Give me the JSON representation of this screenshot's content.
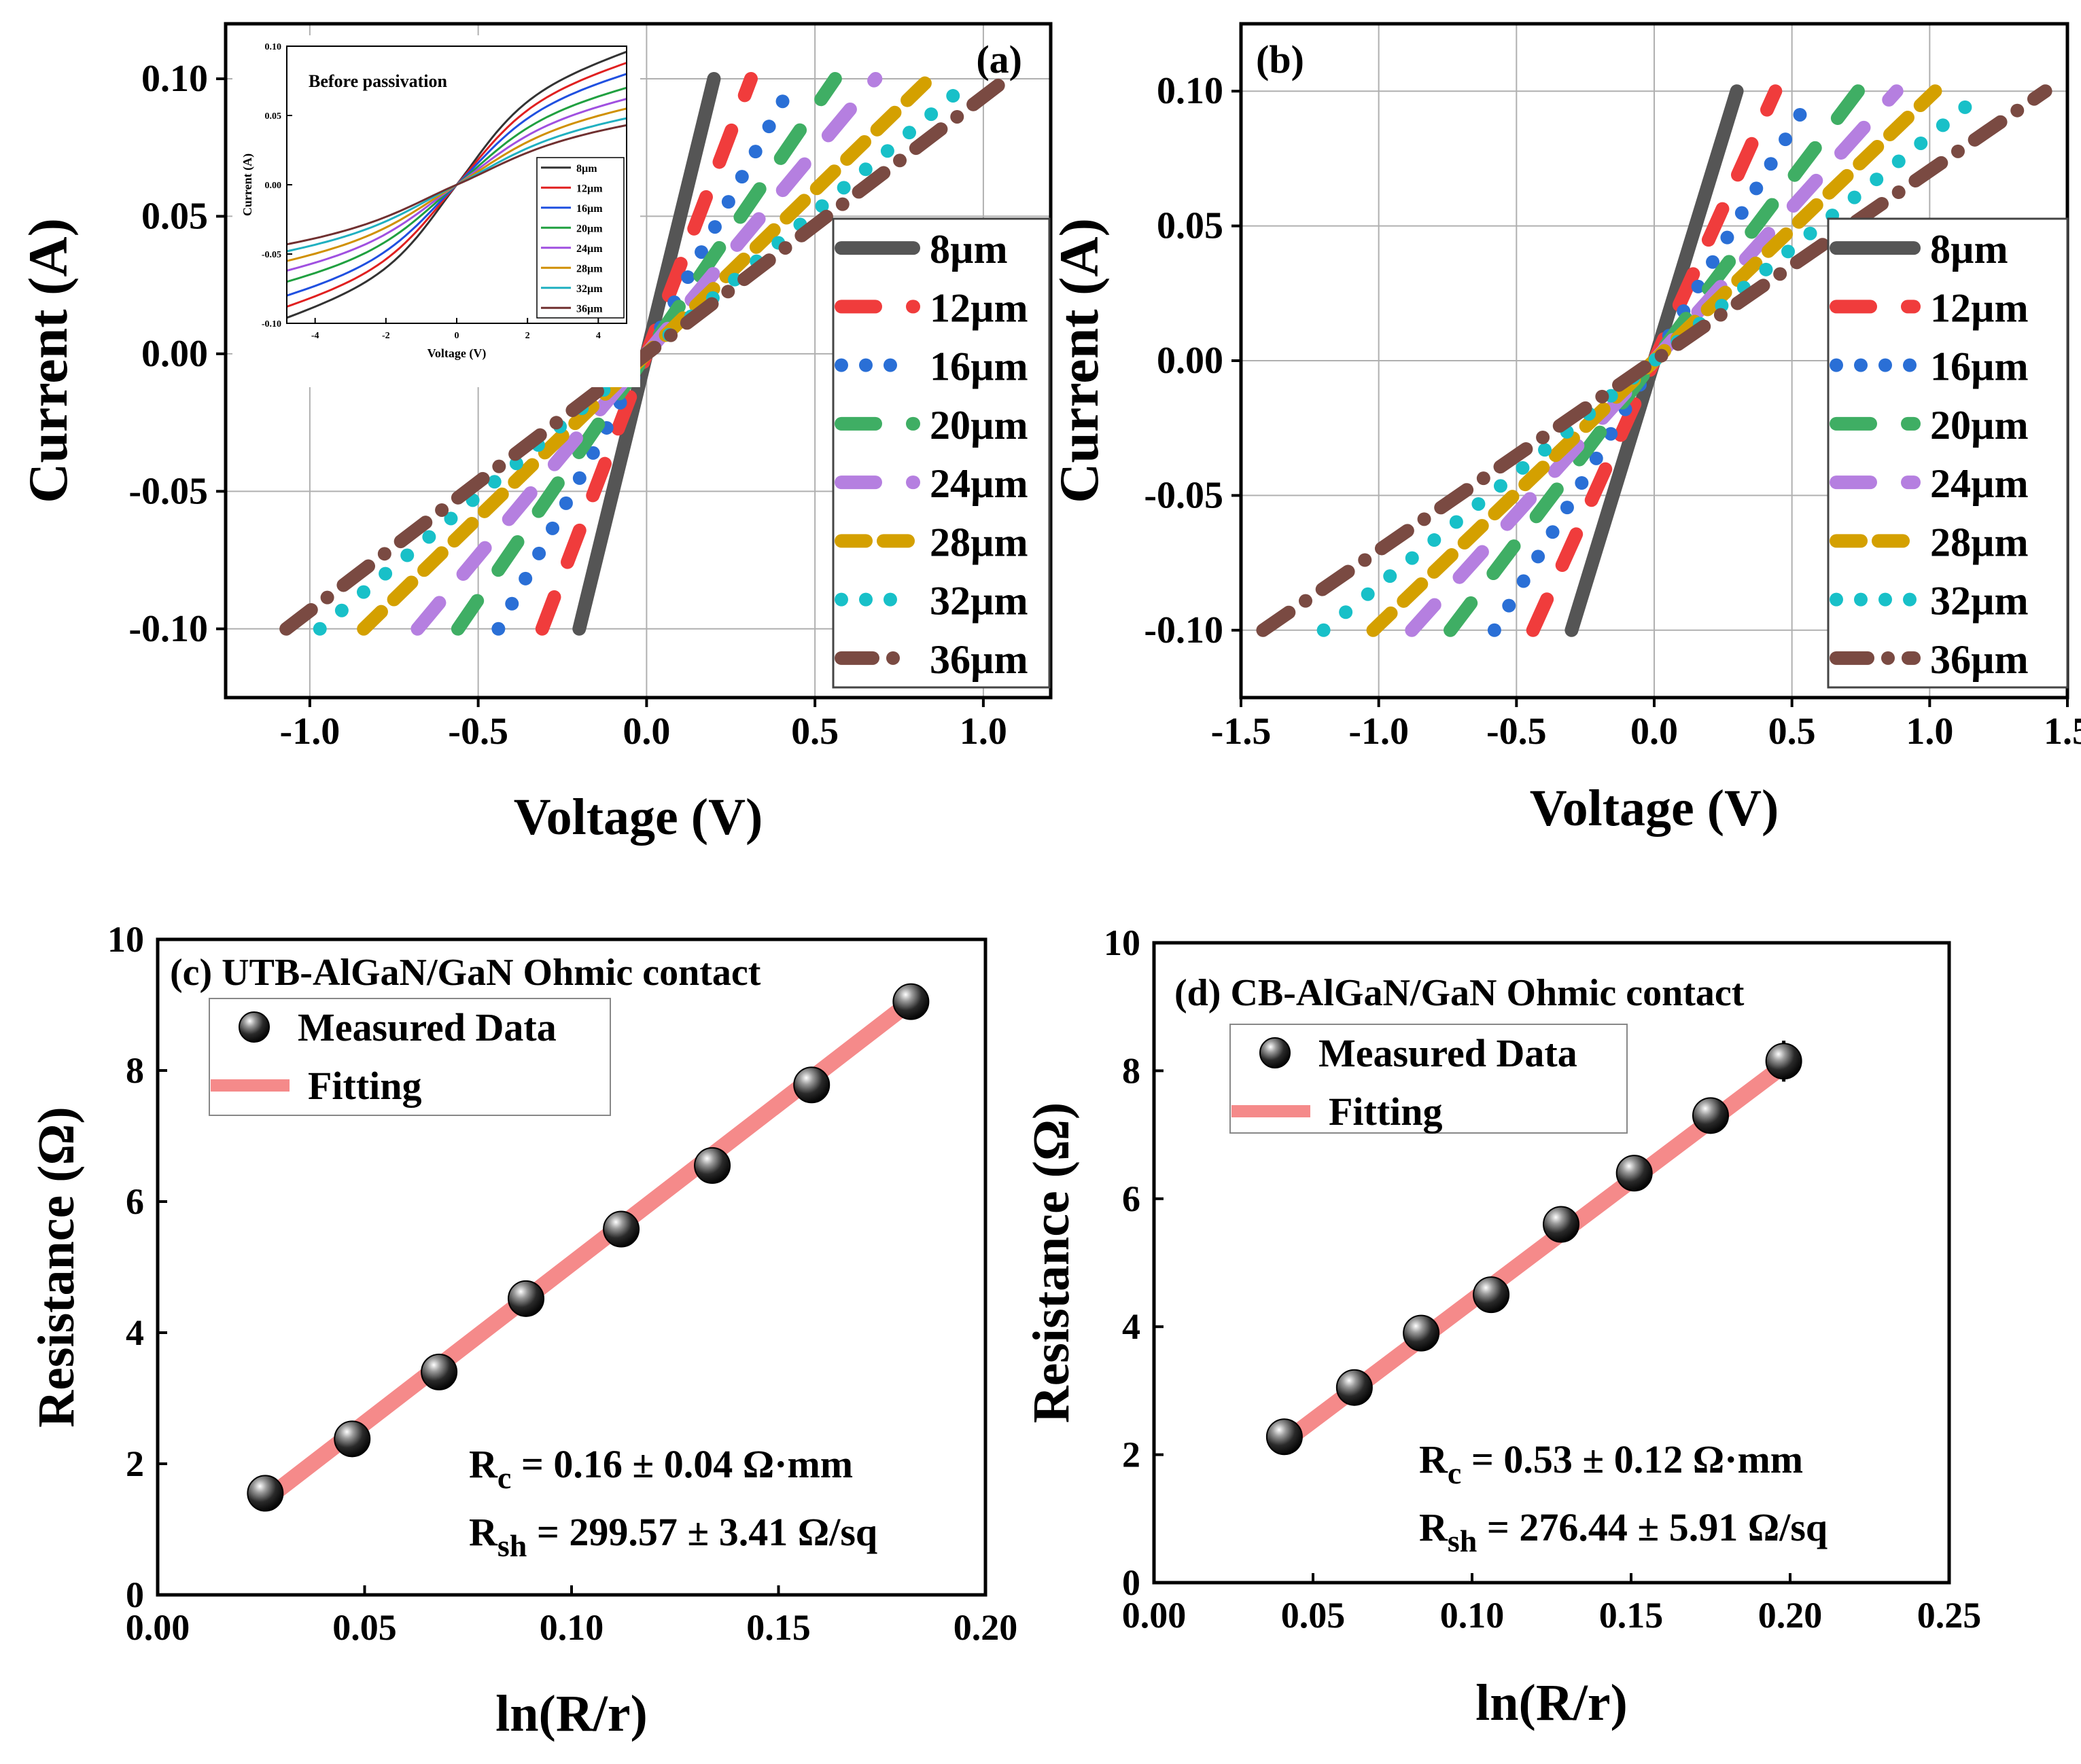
{
  "figure": {
    "panels": [
      "(a)",
      "(b)",
      "(c)",
      "(d)"
    ]
  },
  "chart_data": [
    {
      "id": "a",
      "type": "line",
      "panel_label": "(a)",
      "xlabel": "Voltage (V)",
      "ylabel": "Current (A)",
      "xlim": [
        -1.25,
        1.2
      ],
      "ylim": [
        -0.125,
        0.12
      ],
      "xticks": [
        -1.0,
        -0.5,
        0.0,
        0.5,
        1.0
      ],
      "xtick_labels": [
        "-1.0",
        "-0.5",
        "0.0",
        "0.5",
        "1.0"
      ],
      "yticks": [
        -0.1,
        -0.05,
        0.0,
        0.05,
        0.1
      ],
      "ytick_labels": [
        "-0.10",
        "-0.05",
        "0.00",
        "0.05",
        "0.10"
      ],
      "legend_position": "right",
      "series": [
        {
          "name": "8µm",
          "color": "#555555",
          "dash": "solid",
          "vmax": 0.2
        },
        {
          "name": "12µm",
          "color": "#f03c3c",
          "dash": "dash",
          "vmax": 0.31
        },
        {
          "name": "16µm",
          "color": "#2a6fd6",
          "dash": "dot",
          "vmax": 0.44
        },
        {
          "name": "20µm",
          "color": "#3fae64",
          "dash": "dash",
          "vmax": 0.56
        },
        {
          "name": "24µm",
          "color": "#b57fe0",
          "dash": "dash",
          "vmax": 0.68
        },
        {
          "name": "28µm",
          "color": "#d4a000",
          "dash": "shortdash",
          "vmax": 0.84
        },
        {
          "name": "32µm",
          "color": "#18c0c8",
          "dash": "dot",
          "vmax": 0.97
        },
        {
          "name": "36µm",
          "color": "#7a4a42",
          "dash": "dashdot",
          "vmax": 1.07
        }
      ],
      "inset": {
        "title": "Before passivation",
        "xlabel": "Voltage (V)",
        "ylabel": "Current (A)",
        "xlim": [
          -4.8,
          4.8
        ],
        "ylim": [
          -0.1,
          0.1
        ],
        "xticks": [
          -4,
          -2,
          0,
          2,
          4
        ],
        "xtick_labels": [
          "-4",
          "-2",
          "0",
          "2",
          "4"
        ],
        "yticks": [
          -0.1,
          -0.05,
          0.0,
          0.05,
          0.1
        ],
        "ytick_labels": [
          "-0.10",
          "-0.05",
          "0.00",
          "0.05",
          "0.10"
        ],
        "series": [
          {
            "name": "8µm",
            "color": "#333333",
            "amp": 0.096
          },
          {
            "name": "12µm",
            "color": "#e02020",
            "amp": 0.088
          },
          {
            "name": "16µm",
            "color": "#2050e0",
            "amp": 0.08
          },
          {
            "name": "20µm",
            "color": "#20a040",
            "amp": 0.07
          },
          {
            "name": "24µm",
            "color": "#a050e0",
            "amp": 0.062
          },
          {
            "name": "28µm",
            "color": "#d09000",
            "amp": 0.055
          },
          {
            "name": "32µm",
            "color": "#20b0c0",
            "amp": 0.048
          },
          {
            "name": "36µm",
            "color": "#703030",
            "amp": 0.043
          }
        ]
      }
    },
    {
      "id": "b",
      "type": "line",
      "panel_label": "(b)",
      "xlabel": "Voltage (V)",
      "ylabel": "Current (A)",
      "xlim": [
        -1.5,
        1.5
      ],
      "ylim": [
        -0.125,
        0.125
      ],
      "xticks": [
        -1.5,
        -1.0,
        -0.5,
        0.0,
        0.5,
        1.0,
        1.5
      ],
      "xtick_labels": [
        "-1.5",
        "-1.0",
        "-0.5",
        "0.0",
        "0.5",
        "1.0",
        "1.5"
      ],
      "yticks": [
        -0.1,
        -0.05,
        0.0,
        0.05,
        0.1
      ],
      "ytick_labels": [
        "-0.10",
        "-0.05",
        "0.00",
        "0.05",
        "0.10"
      ],
      "legend_position": "right",
      "series": [
        {
          "name": "8µm",
          "color": "#555555",
          "dash": "solid",
          "vmax": 0.3
        },
        {
          "name": "12µm",
          "color": "#f03c3c",
          "dash": "dash",
          "vmax": 0.44
        },
        {
          "name": "16µm",
          "color": "#2a6fd6",
          "dash": "dot",
          "vmax": 0.58
        },
        {
          "name": "20µm",
          "color": "#3fae64",
          "dash": "dash",
          "vmax": 0.74
        },
        {
          "name": "24µm",
          "color": "#b57fe0",
          "dash": "dash",
          "vmax": 0.88
        },
        {
          "name": "28µm",
          "color": "#d4a000",
          "dash": "shortdash",
          "vmax": 1.02
        },
        {
          "name": "32µm",
          "color": "#18c0c8",
          "dash": "dot",
          "vmax": 1.2
        },
        {
          "name": "36µm",
          "color": "#7a4a42",
          "dash": "dashdot",
          "vmax": 1.42
        }
      ]
    },
    {
      "id": "c",
      "type": "scatter",
      "title": "(c) UTB-AlGaN/GaN Ohmic contact",
      "xlabel": "ln(R/r)",
      "ylabel": "Resistance (Ω)",
      "xlim": [
        0.0,
        0.2
      ],
      "ylim": [
        0,
        10
      ],
      "xticks": [
        0.0,
        0.05,
        0.1,
        0.15,
        0.2
      ],
      "xtick_labels": [
        "0.00",
        "0.05",
        "0.10",
        "0.15",
        "0.20"
      ],
      "yticks": [
        0,
        2,
        4,
        6,
        8,
        10
      ],
      "ytick_labels": [
        "0",
        "2",
        "4",
        "6",
        "8",
        "10"
      ],
      "legend": [
        "Measured Data",
        "Fitting"
      ],
      "x": [
        0.026,
        0.047,
        0.068,
        0.089,
        0.112,
        0.134,
        0.158,
        0.182
      ],
      "y": [
        1.55,
        2.38,
        3.4,
        4.52,
        5.58,
        6.55,
        7.78,
        9.05
      ],
      "fit": {
        "x": [
          0.026,
          0.182
        ],
        "y": [
          1.45,
          9.05
        ]
      },
      "annotations": {
        "rc_main": "R",
        "rc_sub": "c",
        "rc_value": " = 0.16 ± 0.04 Ω·mm",
        "rsh_main": "R",
        "rsh_sub": "sh",
        "rsh_value": " = 299.57 ± 3.41 Ω/sq"
      }
    },
    {
      "id": "d",
      "type": "scatter",
      "title": "(d) CB-AlGaN/GaN Ohmic contact",
      "xlabel": "ln(R/r)",
      "ylabel": "Resistance (Ω)",
      "xlim": [
        0.0,
        0.25
      ],
      "ylim": [
        0,
        10
      ],
      "xticks": [
        0.0,
        0.05,
        0.1,
        0.15,
        0.2,
        0.25
      ],
      "xtick_labels": [
        "0.00",
        "0.05",
        "0.10",
        "0.15",
        "0.20",
        "0.25"
      ],
      "yticks": [
        0,
        2,
        4,
        6,
        8,
        10
      ],
      "ytick_labels": [
        "0",
        "2",
        "4",
        "6",
        "8",
        "10"
      ],
      "legend": [
        "Measured Data",
        "Fitting"
      ],
      "x": [
        0.041,
        0.063,
        0.084,
        0.106,
        0.128,
        0.151,
        0.175,
        0.198
      ],
      "y": [
        2.28,
        3.05,
        3.9,
        4.5,
        5.6,
        6.4,
        7.3,
        8.15
      ],
      "yerr": [
        0.08,
        0.1,
        0.12,
        0.15,
        0.15,
        0.18,
        0.28,
        0.32
      ],
      "fit": {
        "x": [
          0.041,
          0.198
        ],
        "y": [
          2.2,
          8.08
        ]
      },
      "annotations": {
        "rc_main": "R",
        "rc_sub": "c",
        "rc_value": " = 0.53 ± 0.12 Ω·mm",
        "rsh_main": "R",
        "rsh_sub": "sh",
        "rsh_value": " = 276.44 ±  5.91  Ω/sq"
      }
    }
  ]
}
